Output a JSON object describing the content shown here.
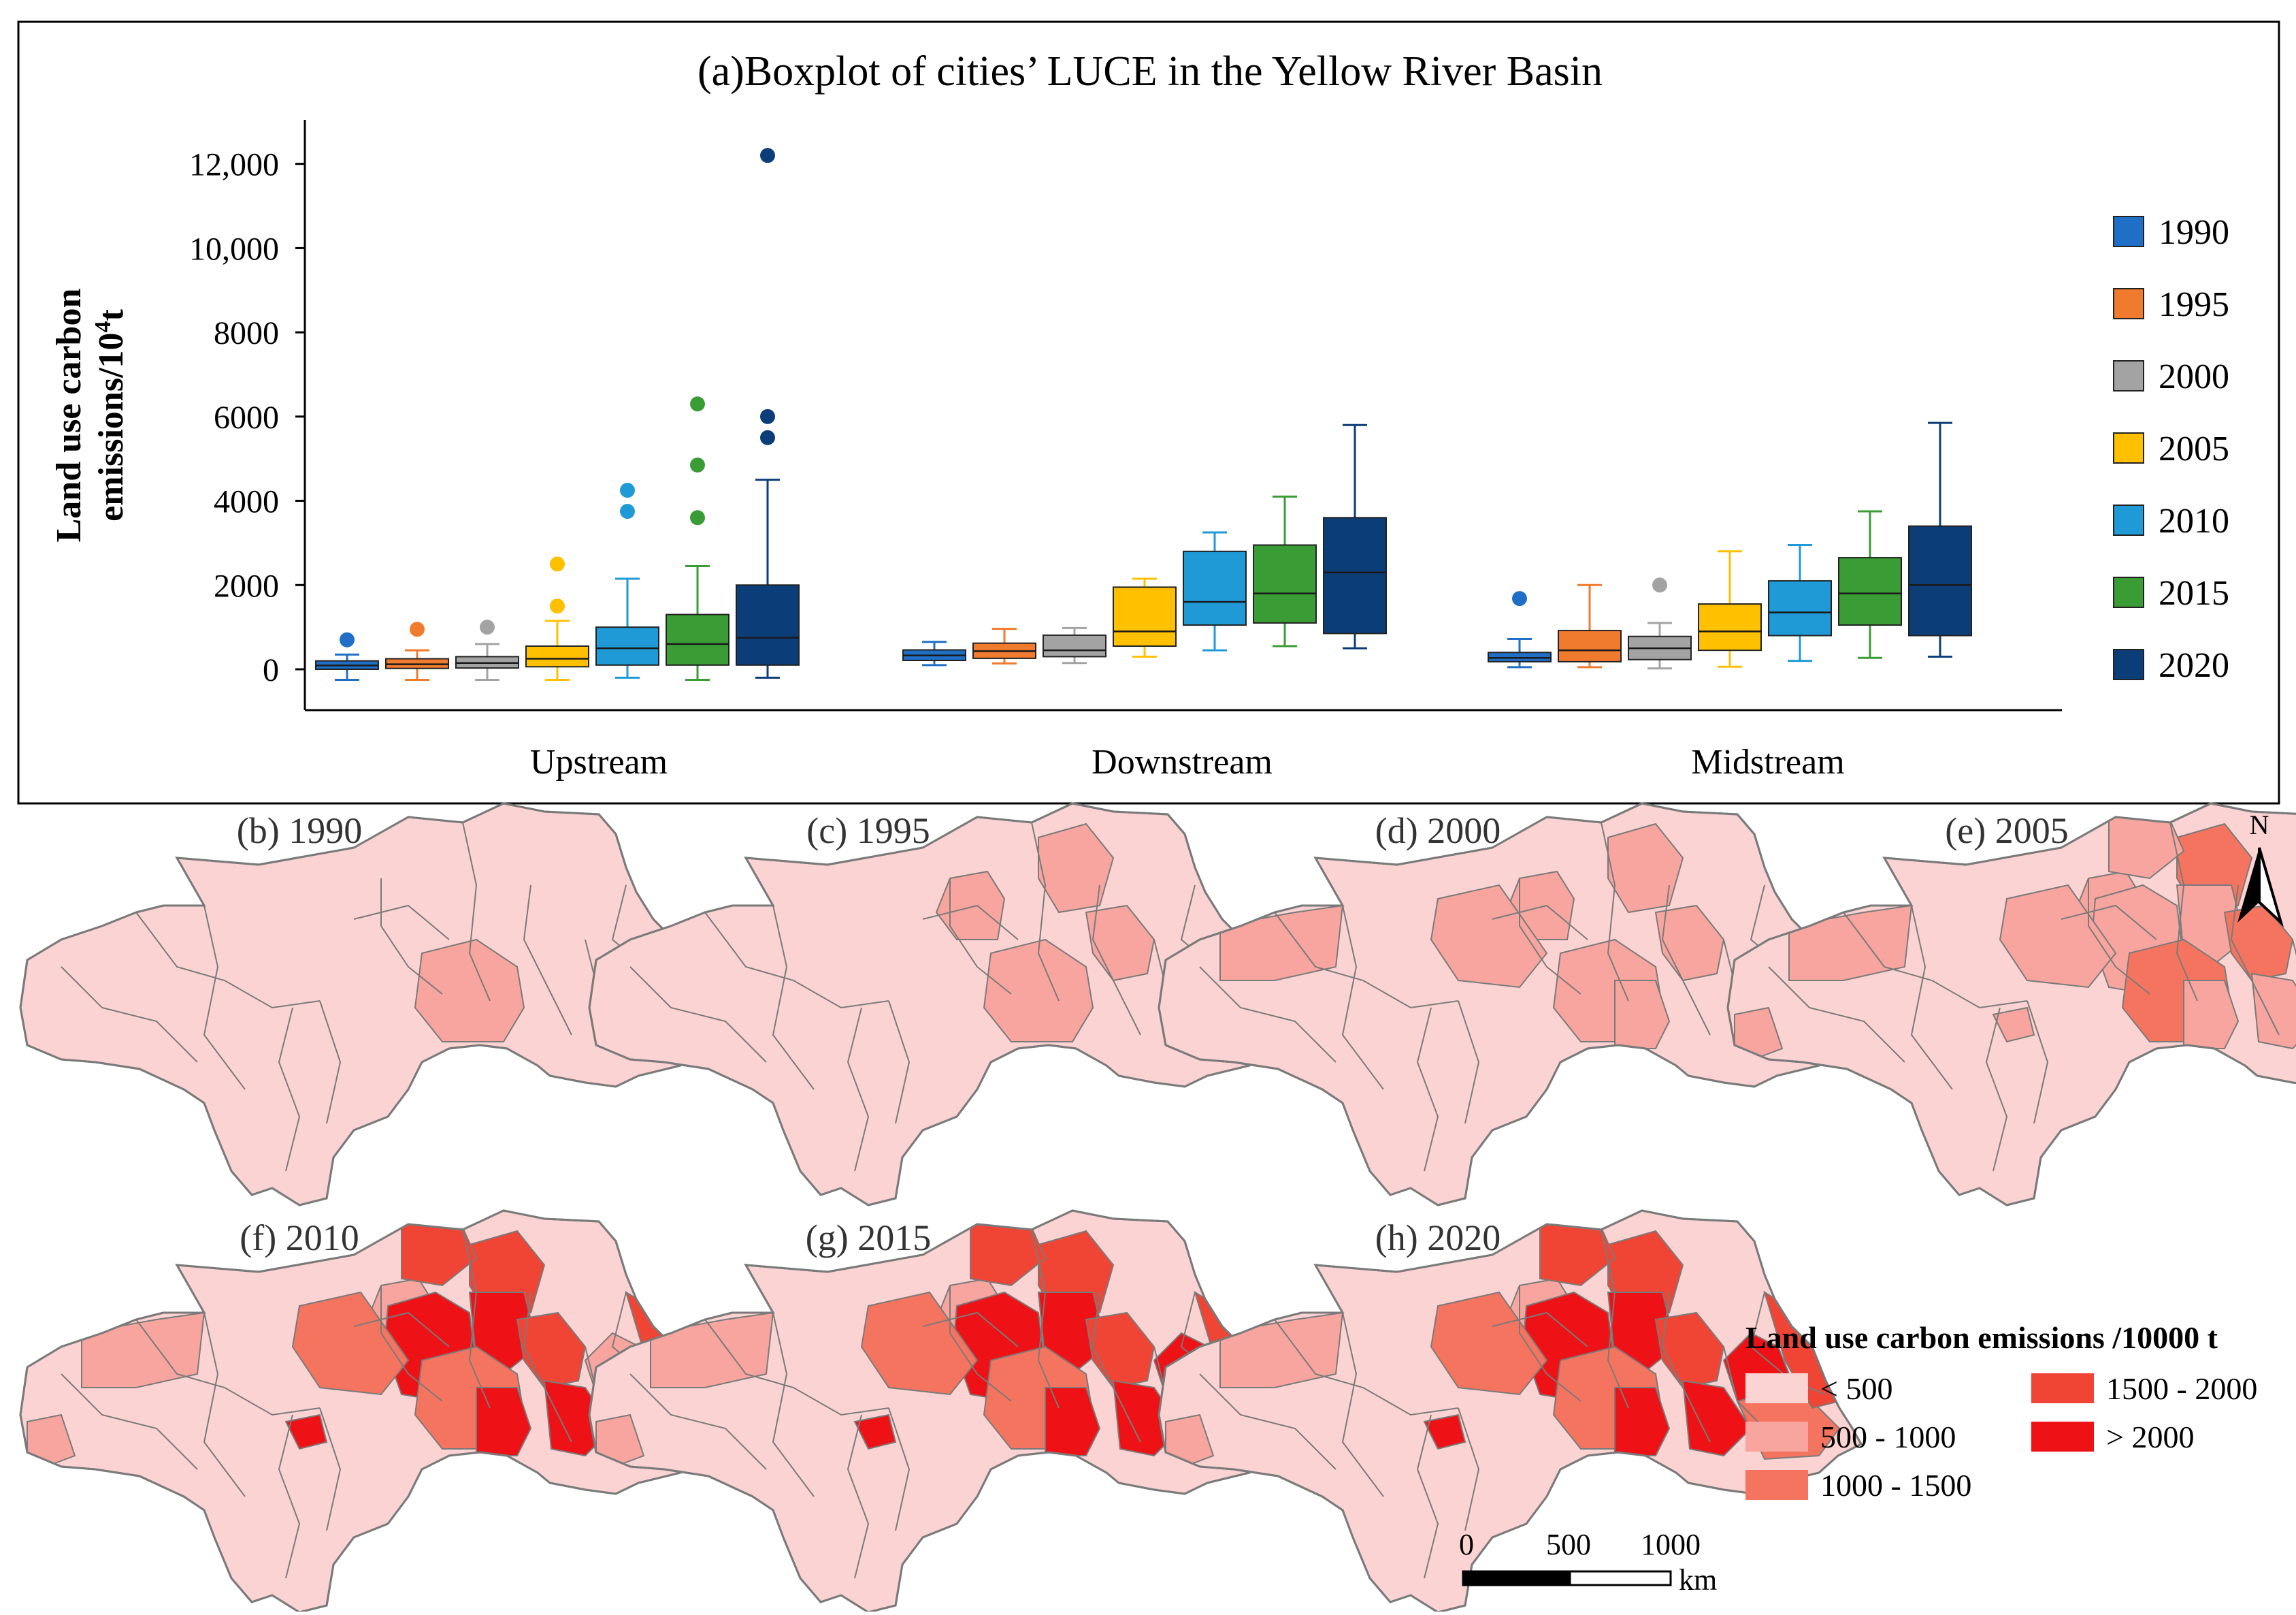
{
  "chart_data": [
    {
      "type": "boxplot",
      "title": "(a)Boxplot of cities’ LUCE in the Yellow River Basin",
      "ylabel_line1": "Land use carbon",
      "ylabel_line2": "emissions/10",
      "ylabel_sup": "4",
      "ylabel_unit": "t",
      "ylim": [
        -1000,
        13000
      ],
      "yticks": [
        {
          "value": 0,
          "label": "0"
        },
        {
          "value": 2000,
          "label": "2000"
        },
        {
          "value": 4000,
          "label": "4000"
        },
        {
          "value": 6000,
          "label": "6000"
        },
        {
          "value": 8000,
          "label": "8000"
        },
        {
          "value": 10000,
          "label": "10,000"
        },
        {
          "value": 12000,
          "label": "12,000"
        }
      ],
      "categories": [
        "Upstream",
        "Downstream",
        "Midstream"
      ],
      "legend_position": "right",
      "series": [
        {
          "name": "1990",
          "color": "#1f6fc6",
          "boxes": [
            {
              "low": -250,
              "q1": 0,
              "median": 90,
              "q3": 200,
              "high": 350,
              "outliers": [
                700
              ]
            },
            {
              "low": 100,
              "q1": 210,
              "median": 330,
              "q3": 460,
              "high": 650,
              "outliers": []
            },
            {
              "low": 50,
              "q1": 180,
              "median": 270,
              "q3": 400,
              "high": 720,
              "outliers": [
                1680
              ]
            }
          ]
        },
        {
          "name": "1995",
          "color": "#f07a2e",
          "boxes": [
            {
              "low": -250,
              "q1": 20,
              "median": 120,
              "q3": 250,
              "high": 450,
              "outliers": [
                950
              ]
            },
            {
              "low": 140,
              "q1": 260,
              "median": 430,
              "q3": 620,
              "high": 960,
              "outliers": []
            },
            {
              "low": 50,
              "q1": 180,
              "median": 450,
              "q3": 920,
              "high": 2000,
              "outliers": []
            }
          ]
        },
        {
          "name": "2000",
          "color": "#a3a3a3",
          "boxes": [
            {
              "low": -250,
              "q1": 30,
              "median": 150,
              "q3": 300,
              "high": 600,
              "outliers": [
                1000
              ]
            },
            {
              "low": 150,
              "q1": 300,
              "median": 450,
              "q3": 810,
              "high": 980,
              "outliers": []
            },
            {
              "low": 20,
              "q1": 230,
              "median": 500,
              "q3": 780,
              "high": 1100,
              "outliers": [
                2000
              ]
            }
          ]
        },
        {
          "name": "2005",
          "color": "#ffc000",
          "boxes": [
            {
              "low": -250,
              "q1": 60,
              "median": 250,
              "q3": 550,
              "high": 1150,
              "outliers": [
                1500,
                2500
              ]
            },
            {
              "low": 300,
              "q1": 550,
              "median": 900,
              "q3": 1950,
              "high": 2150,
              "outliers": []
            },
            {
              "low": 60,
              "q1": 450,
              "median": 900,
              "q3": 1550,
              "high": 2800,
              "outliers": []
            }
          ]
        },
        {
          "name": "2010",
          "color": "#1f9ad6",
          "boxes": [
            {
              "low": -200,
              "q1": 100,
              "median": 500,
              "q3": 1000,
              "high": 2150,
              "outliers": [
                3750,
                4250
              ]
            },
            {
              "low": 450,
              "q1": 1050,
              "median": 1600,
              "q3": 2800,
              "high": 3250,
              "outliers": []
            },
            {
              "low": 200,
              "q1": 800,
              "median": 1350,
              "q3": 2100,
              "high": 2950,
              "outliers": []
            }
          ]
        },
        {
          "name": "2015",
          "color": "#3a9c35",
          "boxes": [
            {
              "low": -250,
              "q1": 100,
              "median": 600,
              "q3": 1300,
              "high": 2450,
              "outliers": [
                3600,
                4850,
                6300
              ]
            },
            {
              "low": 550,
              "q1": 1100,
              "median": 1800,
              "q3": 2950,
              "high": 4100,
              "outliers": []
            },
            {
              "low": 270,
              "q1": 1050,
              "median": 1800,
              "q3": 2650,
              "high": 3750,
              "outliers": []
            }
          ]
        },
        {
          "name": "2020",
          "color": "#0b3e78",
          "boxes": [
            {
              "low": -200,
              "q1": 100,
              "median": 750,
              "q3": 2000,
              "high": 4500,
              "outliers": [
                5500,
                6000,
                12200
              ]
            },
            {
              "low": 500,
              "q1": 850,
              "median": 2300,
              "q3": 3600,
              "high": 5800,
              "outliers": []
            },
            {
              "low": 300,
              "q1": 800,
              "median": 2000,
              "q3": 3400,
              "high": 5850,
              "outliers": []
            }
          ]
        }
      ]
    }
  ],
  "maps": [
    {
      "label": "(b) 1990",
      "year": "1990",
      "intensity": 0
    },
    {
      "label": "(c) 1995",
      "year": "1995",
      "intensity": 1
    },
    {
      "label": "(d) 2000",
      "year": "2000",
      "intensity": 1.5
    },
    {
      "label": "(e) 2005",
      "year": "2005",
      "intensity": 2
    },
    {
      "label": "(f) 2010",
      "year": "2010",
      "intensity": 3
    },
    {
      "label": "(g) 2015",
      "year": "2015",
      "intensity": 3.5
    },
    {
      "label": "(h) 2020",
      "year": "2020",
      "intensity": 4
    }
  ],
  "map_legend": {
    "title": "Land use carbon emissions /10000 t",
    "classes": [
      {
        "label": "< 500",
        "color": "#fcd3d3"
      },
      {
        "label": "500 - 1000",
        "color": "#f7a59e"
      },
      {
        "label": "1000 - 1500",
        "color": "#f5745f"
      },
      {
        "label": "1500 - 2000",
        "color": "#f04535"
      },
      {
        "label": "> 2000",
        "color": "#ee1216"
      }
    ]
  },
  "scale_bar": {
    "ticks": [
      "0",
      "500",
      "1000"
    ],
    "unit": "km"
  },
  "north_arrow": {
    "label": "N",
    "icon": "north-arrow-icon"
  },
  "colors": {
    "border": "#7a7a7a",
    "frame": "#000000"
  }
}
